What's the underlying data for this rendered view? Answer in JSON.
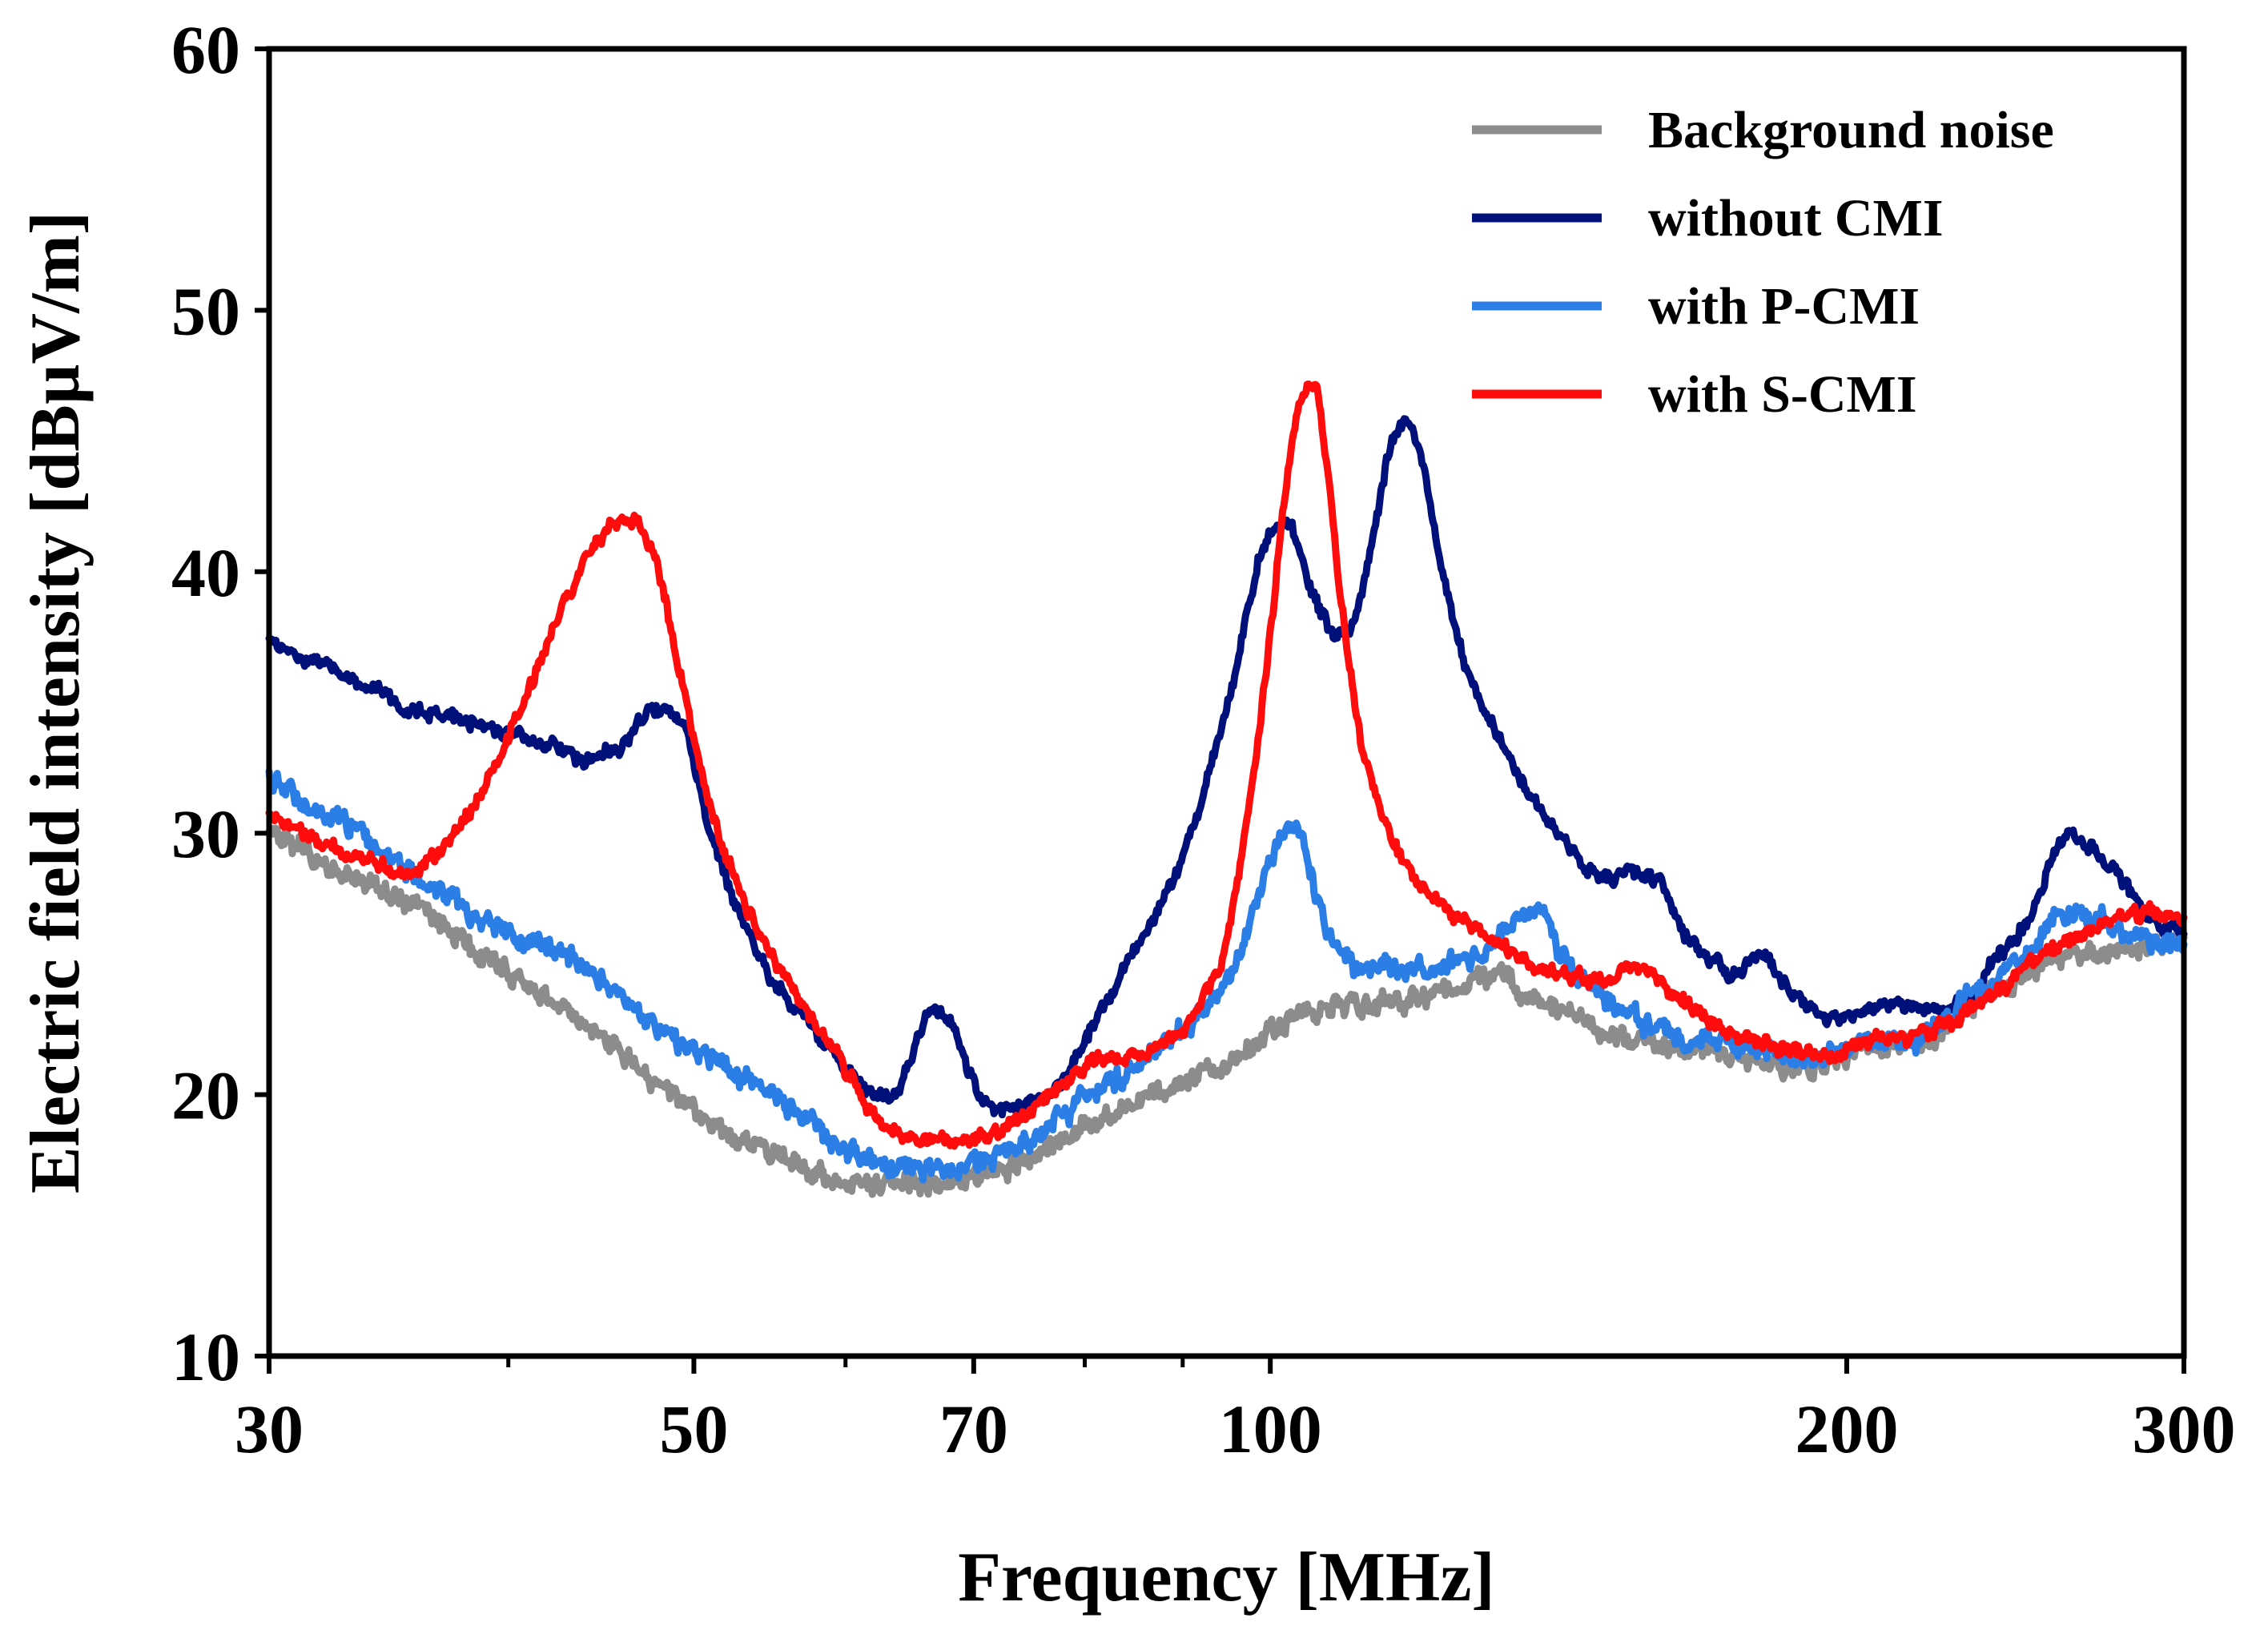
{
  "chart_data": {
    "type": "line",
    "x_scale": "log",
    "xlabel": "Frequency [MHz]",
    "ylabel": "Electric field intensity [dBµV/m]",
    "xlim": [
      30,
      300
    ],
    "ylim": [
      10,
      60
    ],
    "x_ticks": [
      30,
      50,
      70,
      100,
      200,
      300
    ],
    "x_tick_labels": [
      "30",
      "50",
      "70",
      "100",
      "200",
      "300"
    ],
    "x_minor_ticks": [
      40,
      60,
      80,
      90
    ],
    "y_ticks": [
      10,
      20,
      30,
      40,
      50,
      60
    ],
    "y_tick_labels": [
      "10",
      "20",
      "30",
      "40",
      "50",
      "60"
    ],
    "grid": false,
    "legend_position": "top-right",
    "series": [
      {
        "name": "Background noise",
        "color": "#8c8c8c",
        "noise": 0.5,
        "x": [
          30,
          33,
          36,
          40,
          44,
          48,
          52,
          56,
          60,
          64,
          68,
          72,
          76,
          80,
          85,
          90,
          95,
          100,
          105,
          110,
          115,
          120,
          125,
          130,
          135,
          140,
          150,
          160,
          170,
          180,
          190,
          200,
          210,
          220,
          230,
          240,
          250,
          260,
          270,
          280,
          290,
          300
        ],
        "y": [
          30,
          28.4,
          27,
          24.7,
          22.6,
          20.3,
          18.6,
          17.6,
          16.6,
          16.6,
          16.7,
          17,
          17.8,
          18.8,
          19.6,
          20.5,
          21.3,
          22.3,
          23.2,
          23.4,
          23.5,
          23.7,
          24.1,
          24.5,
          24,
          23.4,
          22.3,
          21.9,
          21.6,
          21.4,
          21.1,
          21.6,
          22,
          22,
          23.2,
          24,
          24.8,
          25.2,
          25.3,
          25.5,
          25.8,
          26
        ]
      },
      {
        "name": "without CMI",
        "color": "#00107a",
        "noise": 0.35,
        "x": [
          30,
          33,
          36,
          38,
          40,
          42,
          44,
          46,
          47.5,
          49,
          51,
          54,
          57,
          60,
          63,
          65,
          66.5,
          68,
          70,
          72,
          74,
          76,
          78,
          80,
          85,
          90,
          95,
          100,
          102,
          105,
          108,
          110,
          113,
          116,
          118,
          120,
          123,
          127,
          132,
          140,
          150,
          155,
          160,
          165,
          170,
          175,
          180,
          185,
          190,
          200,
          210,
          220,
          230,
          240,
          250,
          257,
          262,
          270,
          280,
          290,
          300
        ],
        "y": [
          37.3,
          36,
          34.7,
          34.3,
          33.8,
          33.3,
          32.8,
          33.5,
          34.7,
          34.5,
          30,
          25.3,
          23,
          21,
          19.8,
          21.5,
          23.3,
          22.8,
          20.5,
          19.4,
          19.5,
          20,
          20.6,
          22,
          25.5,
          29,
          35,
          41.5,
          41.8,
          39.4,
          37.6,
          37.8,
          41,
          45.1,
          45.7,
          44.3,
          40,
          36,
          33.5,
          30.5,
          28.3,
          28.5,
          28,
          26,
          25.2,
          24.5,
          25.4,
          24.3,
          23.5,
          22.8,
          23.4,
          23.3,
          23.5,
          25.3,
          27,
          29.3,
          30,
          29.2,
          28,
          26.5,
          26.2
        ]
      },
      {
        "name": "with P-CMI",
        "color": "#2b7ee6",
        "noise": 0.5,
        "x": [
          30,
          33,
          36,
          40,
          44,
          48,
          52,
          56,
          60,
          64,
          68,
          72,
          76,
          80,
          85,
          90,
          95,
          98,
          101,
          103,
          105,
          107,
          110,
          115,
          120,
          125,
          130,
          135,
          138,
          142,
          150,
          160,
          170,
          180,
          190,
          200,
          210,
          220,
          230,
          240,
          250,
          260,
          270,
          280,
          290,
          300
        ],
        "y": [
          32,
          30.3,
          28.3,
          26.2,
          24.8,
          22.4,
          21,
          19.5,
          18,
          17.2,
          17.2,
          17.7,
          18.6,
          19.8,
          21,
          22.5,
          24.5,
          27,
          29.8,
          30.2,
          28.5,
          26.2,
          25,
          24.8,
          24.8,
          25.1,
          25.5,
          26.8,
          27.1,
          25.3,
          23.5,
          22.5,
          22,
          21.8,
          21.4,
          21.7,
          22,
          22.3,
          23.5,
          24.5,
          25.5,
          27,
          26.8,
          26.3,
          26,
          25.8
        ]
      },
      {
        "name": "with S-CMI",
        "color": "#ff0d0d",
        "noise": 0.35,
        "x": [
          30,
          32,
          34,
          35.5,
          37,
          39,
          41,
          43,
          45,
          46.5,
          47.5,
          49,
          51,
          54,
          57,
          60,
          63,
          66,
          69,
          72,
          75,
          78,
          81,
          85,
          90,
          94,
          97,
          100,
          102,
          104,
          105.5,
          107,
          109,
          112,
          116,
          120,
          125,
          130,
          140,
          150,
          155,
          158,
          165,
          175,
          185,
          195,
          205,
          215,
          225,
          235,
          245,
          255,
          265,
          275,
          290,
          300
        ],
        "y": [
          30.7,
          29.6,
          28.8,
          28.5,
          29.5,
          32,
          35.5,
          39.2,
          41.5,
          41.9,
          40.8,
          36.8,
          31,
          26.3,
          23.4,
          21,
          18.8,
          18.3,
          18.3,
          18.6,
          19.4,
          20.5,
          21.2,
          21.5,
          22.5,
          25,
          30,
          37.5,
          43.5,
          46.8,
          47.2,
          44.3,
          38.5,
          33,
          29.7,
          28,
          26.9,
          26,
          24.8,
          24.3,
          25,
          24.6,
          23.5,
          22.3,
          21.8,
          21.5,
          22,
          22.2,
          22.6,
          23.5,
          24.5,
          25.5,
          26.2,
          26.7,
          27,
          26.6
        ]
      }
    ]
  }
}
